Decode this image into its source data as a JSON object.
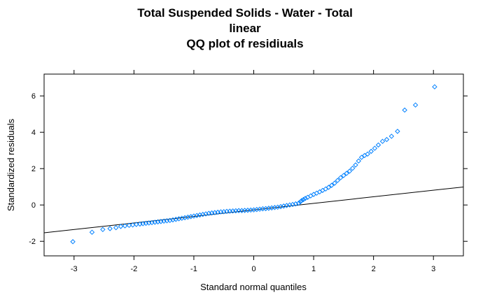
{
  "chart_data": {
    "type": "scatter",
    "title_lines": [
      "Total Suspended Solids - Water - Total",
      "linear",
      "QQ plot of residiuals"
    ],
    "xlabel": "Standard normal quantiles",
    "ylabel": "Standardized residuals",
    "xlim": [
      -3.5,
      3.5
    ],
    "ylim": [
      -2.8,
      7.2
    ],
    "xticks": [
      -3,
      -2,
      -1,
      0,
      1,
      2,
      3
    ],
    "yticks": [
      -2,
      0,
      2,
      4,
      6
    ],
    "grid": false,
    "colors": {
      "points": "#0080ff",
      "reference_line": "#000000",
      "frame": "#000000"
    },
    "reference_line": {
      "slope": 0.36,
      "intercept": -0.27
    },
    "series": [
      {
        "marker": "diamond-open",
        "points": [
          [
            -3.02,
            -2.02
          ],
          [
            -2.7,
            -1.5
          ],
          [
            -2.52,
            -1.35
          ],
          [
            -2.4,
            -1.3
          ],
          [
            -2.3,
            -1.25
          ],
          [
            -2.22,
            -1.18
          ],
          [
            -2.15,
            -1.15
          ],
          [
            -2.08,
            -1.12
          ],
          [
            -2.02,
            -1.1
          ],
          [
            -1.96,
            -1.07
          ],
          [
            -1.9,
            -1.05
          ],
          [
            -1.85,
            -1.03
          ],
          [
            -1.8,
            -1.01
          ],
          [
            -1.75,
            -0.99
          ],
          [
            -1.7,
            -0.97
          ],
          [
            -1.65,
            -0.95
          ],
          [
            -1.6,
            -0.93
          ],
          [
            -1.55,
            -0.91
          ],
          [
            -1.5,
            -0.89
          ],
          [
            -1.45,
            -0.87
          ],
          [
            -1.4,
            -0.85
          ],
          [
            -1.35,
            -0.82
          ],
          [
            -1.3,
            -0.79
          ],
          [
            -1.25,
            -0.76
          ],
          [
            -1.2,
            -0.73
          ],
          [
            -1.15,
            -0.7
          ],
          [
            -1.1,
            -0.67
          ],
          [
            -1.05,
            -0.64
          ],
          [
            -1.0,
            -0.61
          ],
          [
            -0.95,
            -0.58
          ],
          [
            -0.9,
            -0.55
          ],
          [
            -0.85,
            -0.52
          ],
          [
            -0.8,
            -0.49
          ],
          [
            -0.75,
            -0.46
          ],
          [
            -0.7,
            -0.44
          ],
          [
            -0.65,
            -0.42
          ],
          [
            -0.6,
            -0.4
          ],
          [
            -0.55,
            -0.38
          ],
          [
            -0.5,
            -0.37
          ],
          [
            -0.45,
            -0.35
          ],
          [
            -0.4,
            -0.34
          ],
          [
            -0.35,
            -0.33
          ],
          [
            -0.3,
            -0.32
          ],
          [
            -0.25,
            -0.31
          ],
          [
            -0.2,
            -0.31
          ],
          [
            -0.15,
            -0.3
          ],
          [
            -0.1,
            -0.29
          ],
          [
            -0.05,
            -0.28
          ],
          [
            0.0,
            -0.27
          ],
          [
            0.05,
            -0.25
          ],
          [
            0.1,
            -0.23
          ],
          [
            0.15,
            -0.21
          ],
          [
            0.2,
            -0.2
          ],
          [
            0.25,
            -0.18
          ],
          [
            0.3,
            -0.16
          ],
          [
            0.35,
            -0.14
          ],
          [
            0.4,
            -0.12
          ],
          [
            0.45,
            -0.09
          ],
          [
            0.5,
            -0.06
          ],
          [
            0.55,
            -0.03
          ],
          [
            0.6,
            0.0
          ],
          [
            0.65,
            0.03
          ],
          [
            0.7,
            0.06
          ],
          [
            0.75,
            0.1
          ],
          [
            0.78,
            0.18
          ],
          [
            0.8,
            0.24
          ],
          [
            0.83,
            0.3
          ],
          [
            0.86,
            0.36
          ],
          [
            0.9,
            0.42
          ],
          [
            0.95,
            0.5
          ],
          [
            1.0,
            0.58
          ],
          [
            1.05,
            0.65
          ],
          [
            1.1,
            0.72
          ],
          [
            1.15,
            0.8
          ],
          [
            1.2,
            0.88
          ],
          [
            1.25,
            0.97
          ],
          [
            1.3,
            1.08
          ],
          [
            1.35,
            1.2
          ],
          [
            1.4,
            1.35
          ],
          [
            1.45,
            1.5
          ],
          [
            1.5,
            1.62
          ],
          [
            1.55,
            1.74
          ],
          [
            1.6,
            1.86
          ],
          [
            1.65,
            2.02
          ],
          [
            1.7,
            2.2
          ],
          [
            1.75,
            2.42
          ],
          [
            1.8,
            2.62
          ],
          [
            1.85,
            2.72
          ],
          [
            1.9,
            2.8
          ],
          [
            1.96,
            2.95
          ],
          [
            2.02,
            3.12
          ],
          [
            2.08,
            3.3
          ],
          [
            2.15,
            3.5
          ],
          [
            2.22,
            3.6
          ],
          [
            2.3,
            3.78
          ],
          [
            2.4,
            4.05
          ],
          [
            2.52,
            5.22
          ],
          [
            2.7,
            5.5
          ],
          [
            3.02,
            6.5
          ]
        ]
      }
    ]
  }
}
